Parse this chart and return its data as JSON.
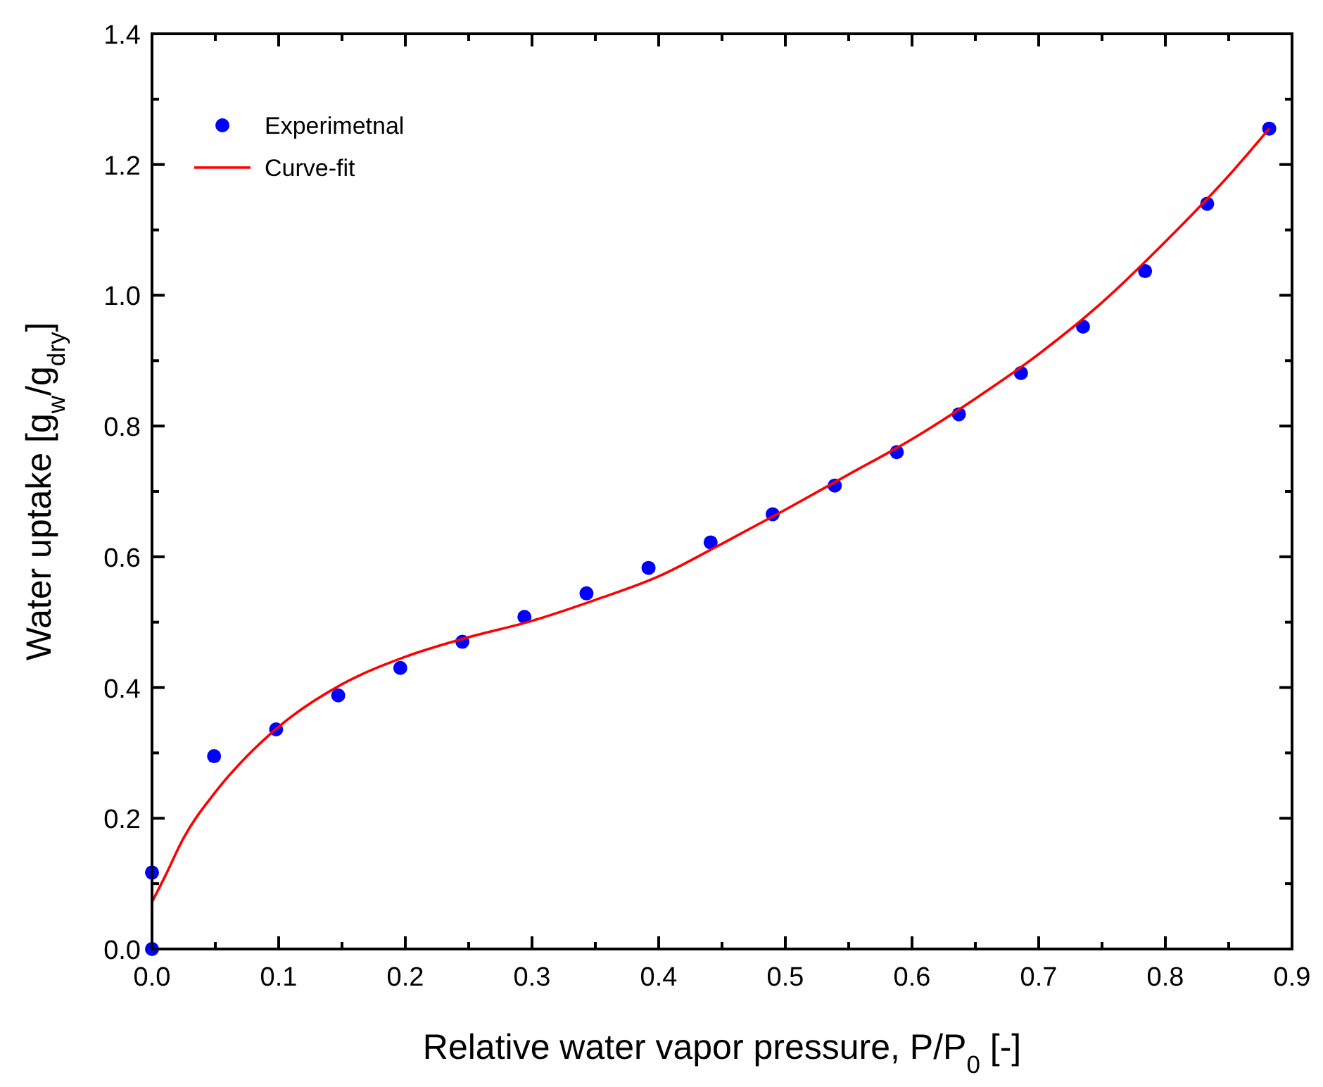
{
  "chart_data": {
    "type": "scatter",
    "xlabel": "Relative water vapor pressure, P/P$_{0}$ [-]",
    "ylabel": "Water uptake [g$_{w}$/g$_{dry}$]",
    "xlim": [
      0,
      0.9
    ],
    "ylim": [
      0,
      1.4
    ],
    "xticks": [
      {
        "value": 0,
        "label": "0.0"
      },
      {
        "value": 0.05,
        "label": null
      },
      0.1,
      {
        "value": 0.15,
        "label": null
      },
      0.2,
      {
        "value": 0.25,
        "label": null
      },
      0.3,
      {
        "value": 0.35,
        "label": null
      },
      0.4,
      {
        "value": 0.45,
        "label": null
      },
      0.5,
      {
        "value": 0.55,
        "label": null
      },
      0.6,
      {
        "value": 0.65,
        "label": null
      },
      0.7,
      {
        "value": 0.75,
        "label": null
      },
      0.8,
      {
        "value": 0.85,
        "label": null
      },
      0.9
    ],
    "yticks": [
      {
        "value": 0,
        "label": "0.0"
      },
      {
        "value": 0.1,
        "label": null
      },
      0.2,
      {
        "value": 0.3,
        "label": null
      },
      0.4,
      {
        "value": 0.5,
        "label": null
      },
      0.6,
      {
        "value": 0.7,
        "label": null
      },
      0.8,
      {
        "value": 0.9,
        "label": null
      },
      {
        "value": 1,
        "label": "1.0"
      },
      {
        "value": 1.1,
        "label": null
      },
      1.2,
      {
        "value": 1.3,
        "label": null
      },
      1.4
    ],
    "grid": false,
    "legend": "top left",
    "series": [
      {
        "name": "Experimetnal",
        "marker": "circle",
        "color": "#0000ff",
        "x": [
          0,
          0,
          0.049,
          0.098,
          0.147,
          0.196,
          0.245,
          0.294,
          0.343,
          0.392,
          0.441,
          0.49,
          0.539,
          0.588,
          0.637,
          0.686,
          0.735,
          0.784,
          0.833,
          0.882
        ],
        "values": [
          0,
          0.117,
          0.295,
          0.336,
          0.388,
          0.43,
          0.47,
          0.508,
          0.544,
          0.583,
          0.622,
          0.665,
          0.709,
          0.76,
          0.818,
          0.881,
          0.952,
          1.037,
          1.14,
          1.255
        ]
      },
      {
        "name": "Curve-fit",
        "type": "line",
        "marker": "none",
        "line_style": "solid",
        "color": "#ff0000",
        "x": [
          0,
          0.01,
          0.025,
          0.05,
          0.075,
          0.1,
          0.15,
          0.2,
          0.25,
          0.3,
          0.35,
          0.4,
          0.45,
          0.5,
          0.55,
          0.6,
          0.65,
          0.7,
          0.75,
          0.8,
          0.85,
          0.882
        ],
        "values": [
          0.072,
          0.11,
          0.17,
          0.24,
          0.295,
          0.34,
          0.405,
          0.447,
          0.477,
          0.502,
          0.534,
          0.57,
          0.62,
          0.672,
          0.726,
          0.78,
          0.842,
          0.91,
          0.989,
          1.082,
          1.183,
          1.255
        ]
      }
    ]
  }
}
